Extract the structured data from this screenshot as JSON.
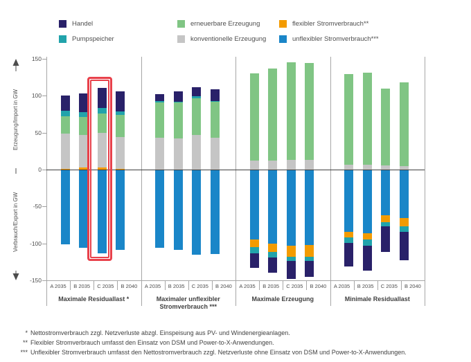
{
  "legend": {
    "columns": [
      [
        {
          "key": "handel",
          "label": "Handel"
        },
        {
          "key": "pumpspeicher",
          "label": "Pumpspeicher"
        }
      ],
      [
        {
          "key": "erneuerbare",
          "label": "erneuerbare Erzeugung"
        },
        {
          "key": "konventionelle",
          "label": "konventionelle Erzeugung"
        }
      ],
      [
        {
          "key": "flexibler",
          "label": "flexibler Stromverbrauch**"
        },
        {
          "key": "unflexibler",
          "label": "unflexibler Stromverbrauch***"
        }
      ]
    ]
  },
  "axis": {
    "label_top": "Erzeugung/Import in GW",
    "label_bottom": "Verbrauch/Export in GW",
    "ticks": [
      "150",
      "100",
      "50",
      "0",
      "-50",
      "-100",
      "-150"
    ]
  },
  "colors": {
    "handel": "#292169",
    "pumpspeicher": "#21a3ab",
    "erneuerbare": "#80c584",
    "konventionelle": "#c5c5c5",
    "flexibler": "#f39b00",
    "unflexibler": "#1a86c8",
    "highlight": "#e8404a",
    "axis_line": "#a6a6a6",
    "zero_line": "#3d3d3d"
  },
  "chart_data": {
    "type": "bar",
    "stacked": true,
    "unit": "GW",
    "ylim": [
      -150,
      150
    ],
    "grid": false,
    "stack_order_pos": [
      "flexibler",
      "konventionelle",
      "erneuerbare",
      "pumpspeicher",
      "handel"
    ],
    "stack_order_neg": [
      "unflexibler",
      "flexibler",
      "pumpspeicher",
      "handel"
    ],
    "highlight": {
      "group": 0,
      "bar": 2
    },
    "groups": [
      {
        "title": "Maximale Residuallast *",
        "bars": [
          {
            "label": "A 2035",
            "pos": {
              "flexibler": 1,
              "konventionelle": 48,
              "erneuerbare": 23,
              "pumpspeicher": 7.5,
              "handel": 20.5
            },
            "neg": {
              "unflexibler": 101
            }
          },
          {
            "label": "B 2035",
            "pos": {
              "flexibler": 3,
              "konventionelle": 43.5,
              "erneuerbare": 24.5,
              "pumpspeicher": 7,
              "handel": 25
            },
            "neg": {
              "unflexibler": 106
            }
          },
          {
            "label": "C 2035",
            "pos": {
              "flexibler": 3,
              "konventionelle": 47,
              "erneuerbare": 26,
              "pumpspeicher": 7,
              "handel": 28
            },
            "neg": {
              "unflexibler": 113
            }
          },
          {
            "label": "B 2040",
            "pos": {
              "flexibler": 1,
              "konventionelle": 43,
              "erneuerbare": 30,
              "pumpspeicher": 5,
              "handel": 27
            },
            "neg": {
              "unflexibler": 109
            }
          }
        ]
      },
      {
        "title": "Maximaler unflexibler Stromverbrauch ***",
        "bars": [
          {
            "label": "A 2035",
            "pos": {
              "konventionelle": 43,
              "erneuerbare": 48,
              "pumpspeicher": 2,
              "handel": 9
            },
            "neg": {
              "unflexibler": 106
            }
          },
          {
            "label": "B 2035",
            "pos": {
              "konventionelle": 42,
              "erneuerbare": 49,
              "pumpspeicher": 1,
              "handel": 14
            },
            "neg": {
              "unflexibler": 109
            }
          },
          {
            "label": "C 2035",
            "pos": {
              "konventionelle": 47,
              "erneuerbare": 50,
              "pumpspeicher": 2,
              "handel": 13
            },
            "neg": {
              "unflexibler": 115
            }
          },
          {
            "label": "B 2040",
            "pos": {
              "konventionelle": 43,
              "erneuerbare": 49,
              "pumpspeicher": 1,
              "handel": 16
            },
            "neg": {
              "unflexibler": 114
            }
          }
        ]
      },
      {
        "title": "Maximale Erzeugung",
        "bars": [
          {
            "label": "A 2035",
            "pos": {
              "konventionelle": 12,
              "erneuerbare": 118
            },
            "neg": {
              "unflexibler": 95,
              "flexibler": 10,
              "pumpspeicher": 8,
              "handel": 20
            }
          },
          {
            "label": "B 2035",
            "pos": {
              "konventionelle": 12,
              "erneuerbare": 125
            },
            "neg": {
              "unflexibler": 100,
              "flexibler": 12,
              "pumpspeicher": 7,
              "handel": 21
            }
          },
          {
            "label": "C 2035",
            "pos": {
              "konventionelle": 13,
              "erneuerbare": 132
            },
            "neg": {
              "unflexibler": 103,
              "flexibler": 15,
              "pumpspeicher": 6,
              "handel": 24
            }
          },
          {
            "label": "B 2040",
            "pos": {
              "konventionelle": 13,
              "erneuerbare": 131
            },
            "neg": {
              "unflexibler": 102,
              "flexibler": 16,
              "pumpspeicher": 5.5,
              "handel": 21.5
            }
          }
        ]
      },
      {
        "title": "Minimale Residuallast",
        "bars": [
          {
            "label": "A 2035",
            "pos": {
              "konventionelle": 7,
              "erneuerbare": 122
            },
            "neg": {
              "unflexibler": 84,
              "flexibler": 8,
              "pumpspeicher": 7,
              "handel": 32
            }
          },
          {
            "label": "B 2035",
            "pos": {
              "konventionelle": 7,
              "erneuerbare": 124
            },
            "neg": {
              "unflexibler": 86,
              "flexibler": 9,
              "pumpspeicher": 8,
              "handel": 34
            }
          },
          {
            "label": "C 2035",
            "pos": {
              "konventionelle": 6,
              "erneuerbare": 104
            },
            "neg": {
              "unflexibler": 62,
              "flexibler": 9,
              "pumpspeicher": 6,
              "handel": 35
            }
          },
          {
            "label": "B 2040",
            "pos": {
              "konventionelle": 5,
              "erneuerbare": 113
            },
            "neg": {
              "unflexibler": 66,
              "flexibler": 11,
              "pumpspeicher": 7,
              "handel": 39
            }
          }
        ]
      }
    ]
  },
  "footnotes": [
    {
      "stars": "*",
      "text": "Nettostromverbrauch zzgl. Netzverluste abzgl. Einspeisung aus PV- und Windenergieanlagen."
    },
    {
      "stars": "**",
      "text": "Flexibler Stromverbrauch umfasst den Einsatz von DSM und Power-to-X-Anwendungen."
    },
    {
      "stars": "***",
      "text": "Unflexibler Stromverbrauch umfasst den Nettostromverbrauch zzgl. Netzverluste ohne Einsatz von DSM und Power-to-X-Anwendungen."
    }
  ]
}
